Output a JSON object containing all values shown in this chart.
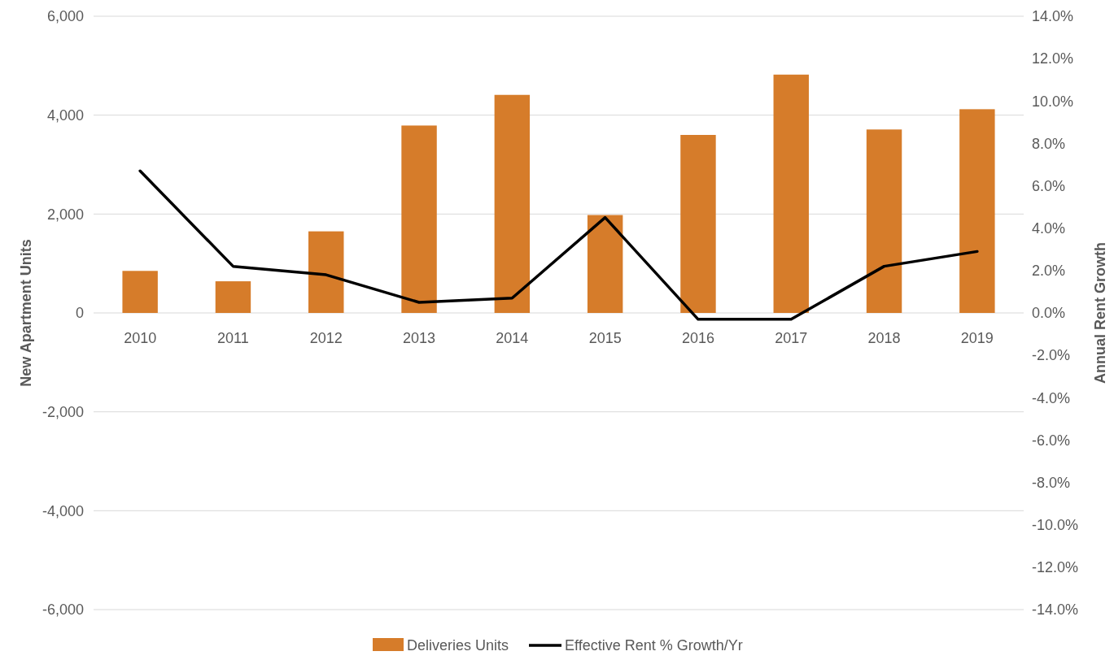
{
  "chart_data": {
    "type": "bar",
    "xlabel": null,
    "ylabel": "New Apartment Units",
    "y2label": "Annual Rent Growth",
    "categories": [
      "2010",
      "2011",
      "2012",
      "2013",
      "2014",
      "2015",
      "2016",
      "2017",
      "2018",
      "2019"
    ],
    "series": [
      {
        "name": "Deliveries Units",
        "color": "#d67c2a",
        "values": [
          850,
          640,
          1650,
          3790,
          4410,
          1980,
          3600,
          4820,
          3710,
          4120
        ]
      },
      {
        "name": "Effective Rent % Growth/Yr",
        "type": "line",
        "axis": "y2",
        "color": "#000000",
        "values": [
          6.7,
          2.2,
          1.8,
          0.5,
          0.7,
          4.5,
          -0.3,
          -0.3,
          2.2,
          2.9
        ]
      }
    ],
    "ylim": [
      -6000,
      6000
    ],
    "yticks": [
      {
        "value": -6000,
        "label": "-6,000"
      },
      {
        "value": -4000,
        "label": "-4,000"
      },
      {
        "value": -2000,
        "label": "-2,000"
      },
      0,
      {
        "value": 2000,
        "label": "2,000"
      },
      {
        "value": 4000,
        "label": "4,000"
      },
      {
        "value": 6000,
        "label": "6,000"
      }
    ],
    "y2lim": [
      -14,
      14
    ],
    "y2ticks": [
      {
        "value": -14,
        "label": "-14.0%"
      },
      {
        "value": -12,
        "label": "-12.0%"
      },
      {
        "value": -10,
        "label": "-10.0%"
      },
      {
        "value": -8,
        "label": "-8.0%"
      },
      {
        "value": -6,
        "label": "-6.0%"
      },
      {
        "value": -4,
        "label": "-4.0%"
      },
      {
        "value": -2,
        "label": "-2.0%"
      },
      {
        "value": 0,
        "label": "0.0%"
      },
      {
        "value": 2,
        "label": "2.0%"
      },
      {
        "value": 4,
        "label": "4.0%"
      },
      {
        "value": 6,
        "label": "6.0%"
      },
      {
        "value": 8,
        "label": "8.0%"
      },
      {
        "value": 10,
        "label": "10.0%"
      },
      {
        "value": 12,
        "label": "12.0%"
      },
      {
        "value": 14,
        "label": "14.0%"
      }
    ],
    "grid": "y",
    "legend": "bottom",
    "marker": "none",
    "line_style": "solid"
  }
}
